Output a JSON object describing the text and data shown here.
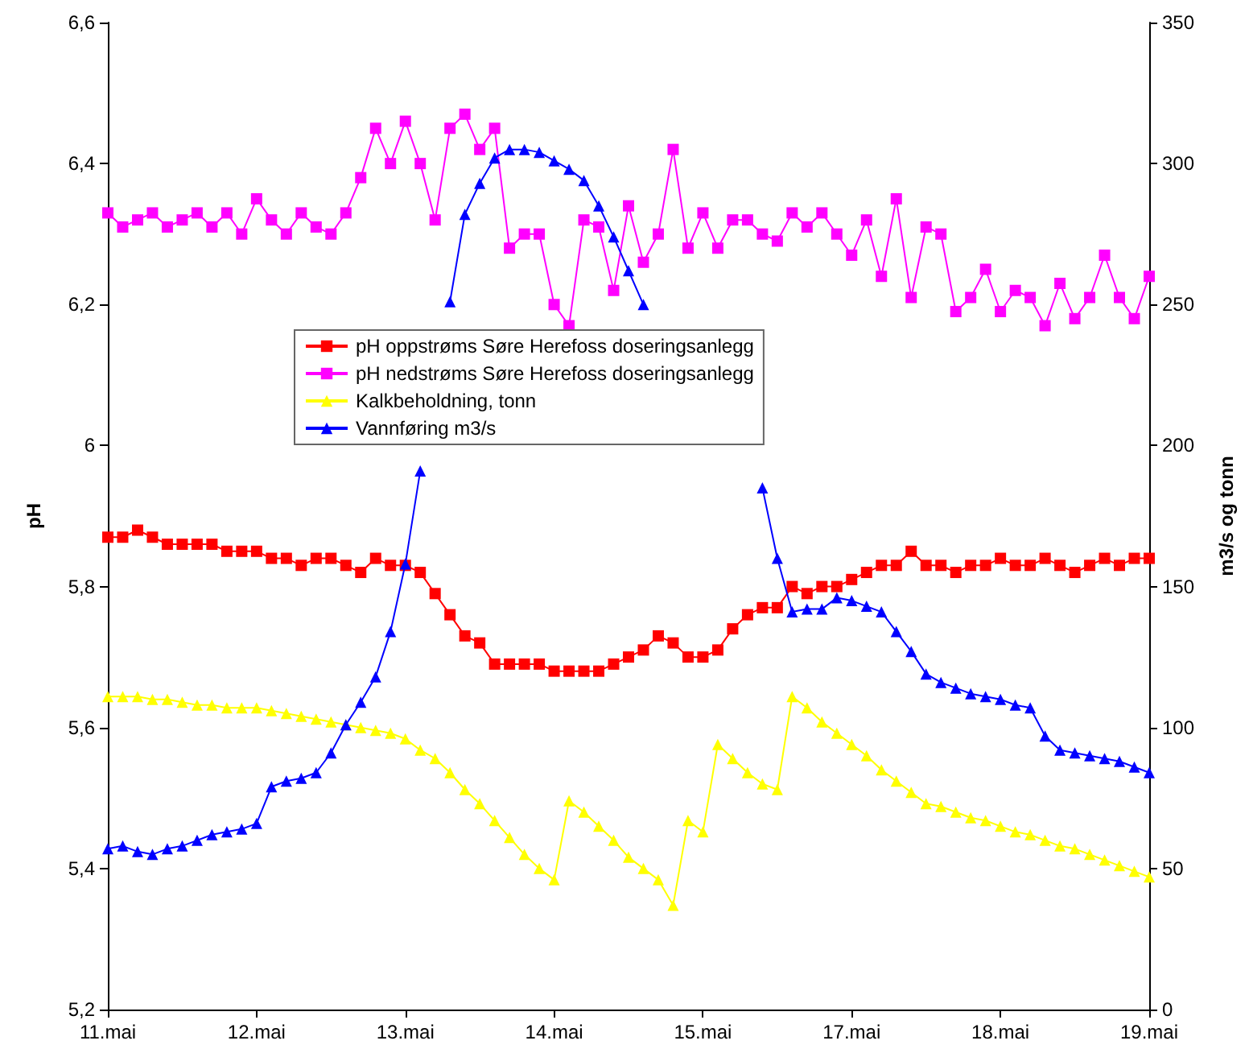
{
  "chart_data": {
    "type": "line",
    "ylabel": "pH",
    "y2label": "m3/s og tonn",
    "categories": [
      "11.mai",
      null,
      null,
      null,
      null,
      null,
      null,
      null,
      null,
      null,
      "12.mai",
      null,
      null,
      null,
      null,
      null,
      null,
      null,
      null,
      null,
      "13.mai",
      null,
      null,
      null,
      null,
      null,
      null,
      null,
      null,
      null,
      "14.mai",
      null,
      null,
      null,
      null,
      null,
      null,
      null,
      null,
      null,
      "15.mai",
      null,
      null,
      null,
      null,
      null,
      null,
      null,
      null,
      null,
      "17.mai",
      null,
      null,
      null,
      null,
      null,
      null,
      null,
      null,
      null,
      "18.mai",
      null,
      null,
      null,
      null,
      null,
      null,
      null,
      null,
      null,
      "19.mai"
    ],
    "ylim": [
      5.2,
      6.6
    ],
    "yticks": [
      {
        "value": 5.2,
        "label": "5,2"
      },
      {
        "value": 5.4,
        "label": "5,4"
      },
      {
        "value": 5.6,
        "label": "5,6"
      },
      {
        "value": 5.8,
        "label": "5,8"
      },
      {
        "value": 6,
        "label": "6"
      },
      {
        "value": 6.2,
        "label": "6,2"
      },
      {
        "value": 6.4,
        "label": "6,4"
      },
      {
        "value": 6.6,
        "label": "6,6"
      }
    ],
    "y2lim": [
      0,
      350
    ],
    "y2ticks": [
      0,
      50,
      100,
      150,
      200,
      250,
      300,
      350
    ],
    "legend": "top",
    "line_style": "solid",
    "series": [
      {
        "name": "pH oppstrøms Søre Herefoss doseringsanlegg",
        "color": "#ff0000",
        "marker": "square",
        "values": [
          5.87,
          5.87,
          5.88,
          5.87,
          5.86,
          5.86,
          5.86,
          5.86,
          5.85,
          5.85,
          5.85,
          5.84,
          5.84,
          5.83,
          5.84,
          5.84,
          5.83,
          5.82,
          5.84,
          5.83,
          5.83,
          5.82,
          5.79,
          5.76,
          5.73,
          5.72,
          5.69,
          5.69,
          5.69,
          5.69,
          5.68,
          5.68,
          5.68,
          5.68,
          5.69,
          5.7,
          5.71,
          5.73,
          5.72,
          5.7,
          5.7,
          5.71,
          5.74,
          5.76,
          5.77,
          5.77,
          5.8,
          5.79,
          5.8,
          5.8,
          5.81,
          5.82,
          5.83,
          5.83,
          5.85,
          5.83,
          5.83,
          5.82,
          5.83,
          5.83,
          5.84,
          5.83,
          5.83,
          5.84,
          5.83,
          5.82,
          5.83,
          5.84,
          5.83,
          5.84,
          5.84
        ]
      },
      {
        "name": "pH nedstrøms Søre Herefoss doseringsanlegg",
        "color": "#ff00ff",
        "marker": "square",
        "values": [
          6.33,
          6.31,
          6.32,
          6.33,
          6.31,
          6.32,
          6.33,
          6.31,
          6.33,
          6.3,
          6.35,
          6.32,
          6.3,
          6.33,
          6.31,
          6.3,
          6.33,
          6.38,
          6.45,
          6.4,
          6.46,
          6.4,
          6.32,
          6.45,
          6.47,
          6.42,
          6.45,
          6.28,
          6.3,
          6.3,
          6.2,
          6.17,
          6.32,
          6.31,
          6.22,
          6.34,
          6.26,
          6.3,
          6.42,
          6.28,
          6.33,
          6.28,
          6.32,
          6.32,
          6.3,
          6.29,
          6.33,
          6.31,
          6.33,
          6.3,
          6.27,
          6.32,
          6.24,
          6.35,
          6.21,
          6.31,
          6.3,
          6.19,
          6.21,
          6.25,
          6.19,
          6.22,
          6.21,
          6.17,
          6.23,
          6.18,
          6.21,
          6.27,
          6.21,
          6.18,
          6.24
        ]
      },
      {
        "name": "Kalkbeholdning, tonn",
        "color": "#ffff00",
        "marker": "triangle",
        "axis": "y2",
        "values": [
          111,
          111,
          111,
          110,
          110,
          109,
          108,
          108,
          107,
          107,
          107,
          106,
          105,
          104,
          103,
          102,
          101,
          100,
          99,
          98,
          96,
          92,
          89,
          84,
          78,
          73,
          67,
          61,
          55,
          50,
          46,
          74,
          70,
          65,
          60,
          54,
          50,
          46,
          37,
          67,
          63,
          94,
          89,
          84,
          80,
          78,
          111,
          107,
          102,
          98,
          94,
          90,
          85,
          81,
          77,
          73,
          72,
          70,
          68,
          67,
          65,
          63,
          62,
          60,
          58,
          57,
          55,
          53,
          51,
          49,
          47
        ]
      },
      {
        "name": "Vannføring m3/s",
        "color": "#0000ff",
        "marker": "triangle",
        "axis": "y2",
        "values": [
          57,
          58,
          56,
          55,
          57,
          58,
          60,
          62,
          63,
          64,
          66,
          79,
          81,
          82,
          84,
          91,
          101,
          109,
          118,
          134,
          158,
          191,
          null,
          251,
          282,
          293,
          302,
          305,
          305,
          304,
          301,
          298,
          294,
          285,
          274,
          262,
          250,
          null,
          null,
          null,
          null,
          null,
          null,
          null,
          185,
          160,
          141,
          142,
          142,
          146,
          145,
          143,
          141,
          134,
          127,
          119,
          116,
          114,
          112,
          111,
          110,
          108,
          107,
          97,
          92,
          91,
          90,
          89,
          88,
          86,
          84
        ]
      }
    ]
  }
}
